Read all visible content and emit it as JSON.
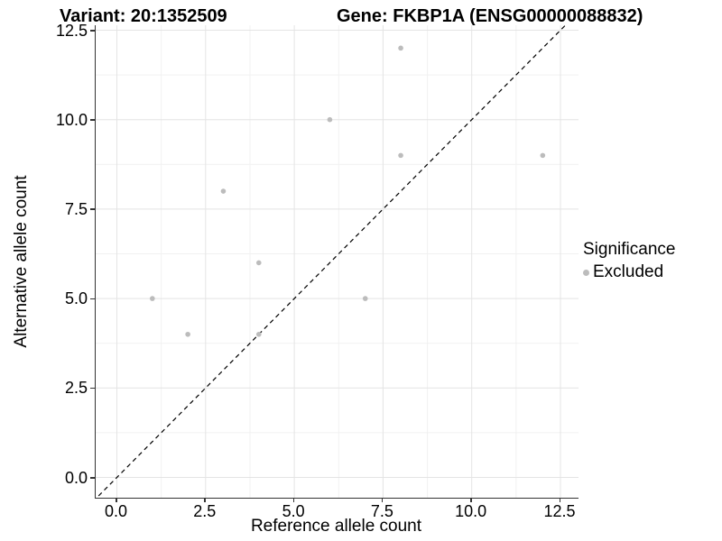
{
  "figure": {
    "title_left": "Variant: 20:1352509",
    "title_right": "Gene: FKBP1A (ENSG00000088832)"
  },
  "chart_data": {
    "type": "scatter",
    "title": "Variant: 20:1352509   Gene: FKBP1A (ENSG00000088832)",
    "variant": "20:1352509",
    "gene_symbol": "FKBP1A",
    "gene_id": "ENSG00000088832",
    "xlabel": "Reference allele count",
    "ylabel": "Alternative allele count",
    "xlim": [
      -0.6,
      13.0
    ],
    "ylim": [
      -0.57,
      12.64
    ],
    "breaks": [
      0,
      2.5,
      5,
      7.5,
      10,
      12.5
    ],
    "break_labels": [
      "0.0",
      "2.5",
      "5.0",
      "7.5",
      "10.0",
      "12.5"
    ],
    "minor_breaks": [
      1.25,
      3.75,
      6.25,
      8.75,
      11.25
    ],
    "grid": true,
    "reference_line": {
      "equation": "y = x",
      "style": "dashed",
      "color": "#000000"
    },
    "series": [
      {
        "name": "Excluded",
        "color": "#bcbcbc",
        "points": [
          [
            1,
            5
          ],
          [
            2,
            4
          ],
          [
            3,
            8
          ],
          [
            4,
            4
          ],
          [
            4,
            6
          ],
          [
            6,
            10
          ],
          [
            7,
            5
          ],
          [
            8,
            9
          ],
          [
            8,
            12
          ],
          [
            12,
            9
          ]
        ]
      }
    ],
    "legend": {
      "title": "Significance",
      "position": "right",
      "entries": [
        {
          "label": "Excluded",
          "color": "#bcbcbc"
        }
      ]
    },
    "style_colors": {
      "major_grid": "#e4e4e4",
      "minor_grid": "#f1f1f1",
      "axis_line": "#333333",
      "point": "#bcbcbc",
      "background": "#ffffff"
    }
  }
}
